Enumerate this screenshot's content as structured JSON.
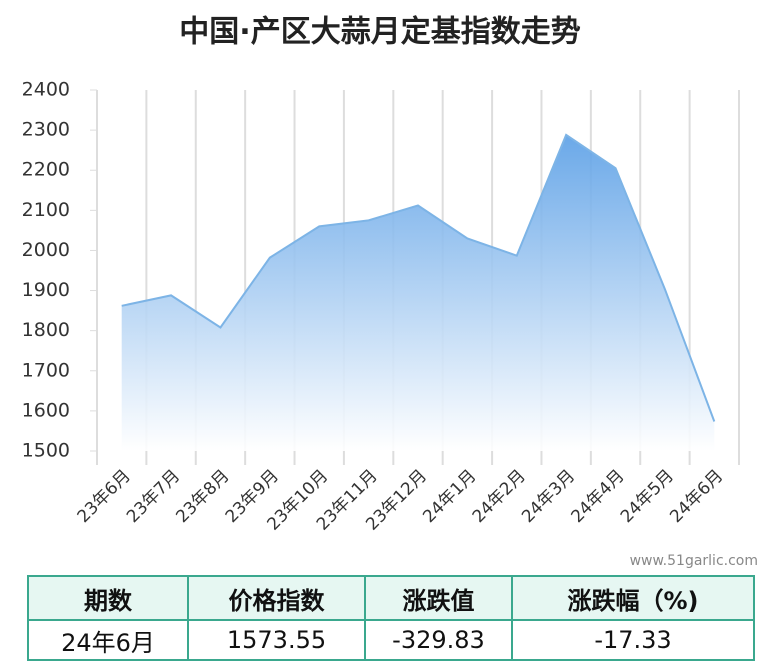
{
  "chart_data": {
    "type": "area",
    "title": "中国·产区大蒜月定基指数走势",
    "categories": [
      "23年6月",
      "23年7月",
      "23年8月",
      "23年9月",
      "23年10月",
      "23年11月",
      "23年12月",
      "24年1月",
      "24年2月",
      "24年3月",
      "24年4月",
      "24年5月",
      "24年6月"
    ],
    "values": [
      1862,
      1888,
      1808,
      1982,
      2060,
      2075,
      2112,
      2030,
      1987,
      2288,
      2205,
      1903.38,
      1573.55
    ],
    "color": "#7db4e6",
    "ylim": [
      1500,
      2400
    ],
    "yticks": [
      1500,
      1600,
      1700,
      1800,
      1900,
      2000,
      2100,
      2200,
      2300,
      2400
    ]
  },
  "watermark": "www.51garlic.com",
  "table": {
    "header": [
      "期数",
      "价格指数",
      "涨跌值",
      "涨跌幅（%)"
    ],
    "rows": [
      [
        "24年6月",
        "1573.55",
        "-329.83",
        "-17.33"
      ]
    ]
  }
}
